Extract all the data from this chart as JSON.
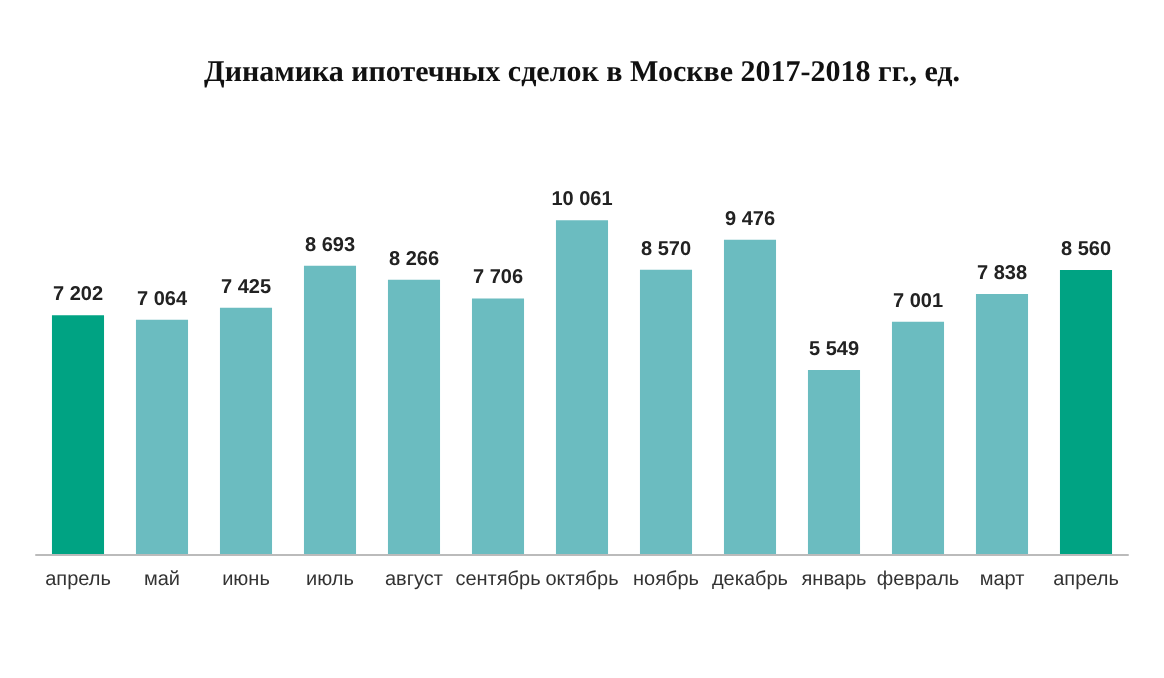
{
  "chart_data": {
    "type": "bar",
    "title": "Динамика ипотечных сделок в Москве 2017-2018 гг., ед.",
    "categories": [
      "апрель",
      "май",
      "июнь",
      "июль",
      "август",
      "сентябрь",
      "октябрь",
      "ноябрь",
      "декабрь",
      "январь",
      "февраль",
      "март",
      "апрель"
    ],
    "values": [
      7202,
      7064,
      7425,
      8693,
      8266,
      7706,
      10061,
      8570,
      9476,
      5549,
      7001,
      7838,
      8560
    ],
    "value_labels": [
      "7 202",
      "7 064",
      "7 425",
      "8 693",
      "8 266",
      "7 706",
      "10 061",
      "8 570",
      "9 476",
      "5 549",
      "7 001",
      "7 838",
      "8 560"
    ],
    "colors": [
      "#00a383",
      "#6bbcc0",
      "#6bbcc0",
      "#6bbcc0",
      "#6bbcc0",
      "#6bbcc0",
      "#6bbcc0",
      "#6bbcc0",
      "#6bbcc0",
      "#6bbcc0",
      "#6bbcc0",
      "#6bbcc0",
      "#00a383"
    ],
    "grid": false
  }
}
